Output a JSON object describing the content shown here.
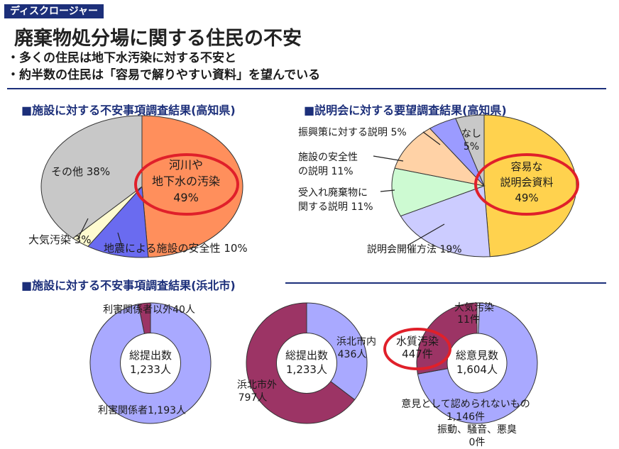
{
  "header": {
    "tag": "ディスクロージャー",
    "title": "廃棄物処分場に関する住民の不安",
    "bullets": [
      "・多くの住民は地下水汚染に対する不安と",
      "・約半数の住民は「容易で解りやすい資料」を望んでいる"
    ]
  },
  "sections": {
    "kochi_concern": "■施設に対する不安事項調査結果(高知県)",
    "kochi_request": "■説明会に対する要望調査結果(高知県)",
    "hamakita": "■施設に対する不安事項調査結果(浜北市)"
  },
  "colors": {
    "accent_blue": "#1c2f7a",
    "highlight_red": "#e0202a",
    "orange": "#ff8f5c",
    "yellow": "#ffd24e",
    "gray": "#c8c8c8",
    "blue": "#6a6bf0",
    "cream": "#fffbd0",
    "peach": "#ffd2a6",
    "mint": "#cdfad2",
    "lavender": "#ccccff",
    "periwinkle": "#9b9bff",
    "maroon": "#9c3465",
    "light_blue": "#a9a9ff"
  },
  "chart_data": [
    {
      "type": "pie",
      "title": "■施設に対する不安事項調査結果(高知県)",
      "slices": [
        {
          "label": "河川や地下水の汚染 49%",
          "value": 49,
          "color": "#ff8f5c"
        },
        {
          "label": "地震による施設の安全性 10%",
          "value": 10,
          "color": "#6a6bf0"
        },
        {
          "label": "大気汚染 3%",
          "value": 3,
          "color": "#fffbd0"
        },
        {
          "label": "その他 38%",
          "value": 38,
          "color": "#c8c8c8"
        }
      ]
    },
    {
      "type": "pie",
      "title": "■説明会に対する要望調査結果(高知県)",
      "slices": [
        {
          "label": "容易な説明会資料 49%",
          "value": 49,
          "color": "#ffd24e"
        },
        {
          "label": "説明会開催方法 19%",
          "value": 19,
          "color": "#ccccff"
        },
        {
          "label": "受入れ廃棄物に関する説明 11%",
          "value": 11,
          "color": "#cdfad2"
        },
        {
          "label": "施設の安全性の説明 11%",
          "value": 11,
          "color": "#ffd2a6"
        },
        {
          "label": "振興策に対する説明 5%",
          "value": 5,
          "color": "#9b9bff"
        },
        {
          "label": "なし 5%",
          "value": 5,
          "color": "#c8c8c8"
        }
      ]
    },
    {
      "type": "pie",
      "title": "■施設に対する不安事項調査結果(浜北市)",
      "center": [
        "総提出数",
        "1,233人"
      ],
      "slices": [
        {
          "label": "利害関係者以外40人",
          "value": 40,
          "color": "#9c3465"
        },
        {
          "label": "利害関係者1,193人",
          "value": 1193,
          "color": "#a9a9ff"
        }
      ]
    },
    {
      "type": "pie",
      "center": [
        "総提出数",
        "1,233人"
      ],
      "slices": [
        {
          "label": "浜北市内 436人",
          "value": 436,
          "color": "#a9a9ff"
        },
        {
          "label": "浜北市外 797人",
          "value": 797,
          "color": "#9c3465"
        }
      ]
    },
    {
      "type": "pie",
      "center": [
        "総意見数",
        "1,604人"
      ],
      "slices": [
        {
          "label": "大気汚染 11件",
          "value": 11,
          "color": "#e8e8ff"
        },
        {
          "label": "意見として認められないもの 1,146件",
          "value": 1146,
          "color": "#a9a9ff"
        },
        {
          "label": "振動、騒音、悪臭 0件",
          "value": 0,
          "color": "#ffffff"
        },
        {
          "label": "水質汚染 447件",
          "value": 447,
          "color": "#9c3465"
        }
      ]
    }
  ]
}
